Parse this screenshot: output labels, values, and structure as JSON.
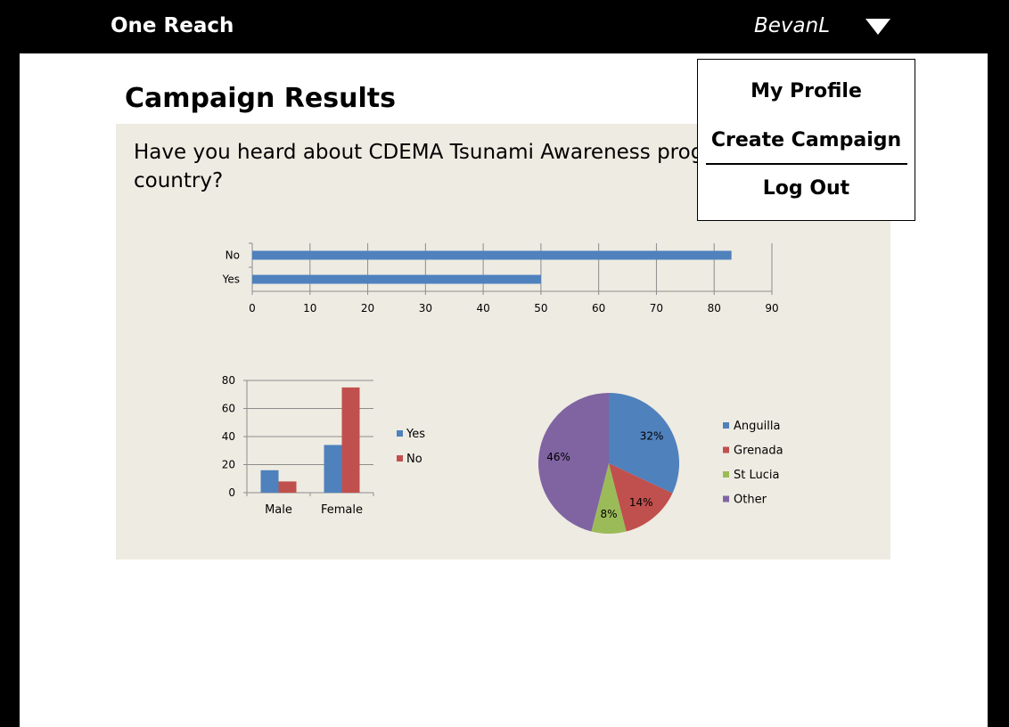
{
  "header": {
    "brand": "One Reach",
    "username": "BevanL"
  },
  "page": {
    "title": "Campaign Results",
    "question": "Have you heard about CDEMA Tsunami Awareness program in your country?"
  },
  "user_menu": {
    "items": [
      {
        "label": "My Profile"
      },
      {
        "label": "Create Campaign"
      },
      {
        "label": "Log Out"
      }
    ]
  },
  "colors": {
    "blue": "#4f81bd",
    "red": "#c0504d",
    "green": "#9bbb59",
    "purple": "#8064a2",
    "panel": "#eeebe2"
  },
  "chart_data": [
    {
      "type": "bar",
      "orientation": "horizontal",
      "categories": [
        "No",
        "Yes"
      ],
      "values": [
        83,
        50
      ],
      "xlim": [
        0,
        90
      ],
      "xticks": [
        0,
        10,
        20,
        30,
        40,
        50,
        60,
        70,
        80,
        90
      ],
      "color": "#4f81bd",
      "grid": true
    },
    {
      "type": "bar",
      "orientation": "vertical",
      "categories": [
        "Male",
        "Female"
      ],
      "series": [
        {
          "name": "Yes",
          "values": [
            16,
            34
          ],
          "color": "#4f81bd"
        },
        {
          "name": "No",
          "values": [
            8,
            75
          ],
          "color": "#c0504d"
        }
      ],
      "ylim": [
        0,
        80
      ],
      "yticks": [
        0,
        20,
        40,
        60,
        80
      ],
      "grid": true,
      "legend": "right"
    },
    {
      "type": "pie",
      "slices": [
        {
          "label": "Anguilla",
          "value": 32,
          "text": "32%",
          "color": "#4f81bd"
        },
        {
          "label": "Grenada",
          "value": 14,
          "text": "14%",
          "color": "#c0504d"
        },
        {
          "label": "St Lucia",
          "value": 8,
          "text": "8%",
          "color": "#9bbb59"
        },
        {
          "label": "Other",
          "value": 46,
          "text": "46%",
          "color": "#8064a2"
        }
      ],
      "legend": "right"
    }
  ]
}
